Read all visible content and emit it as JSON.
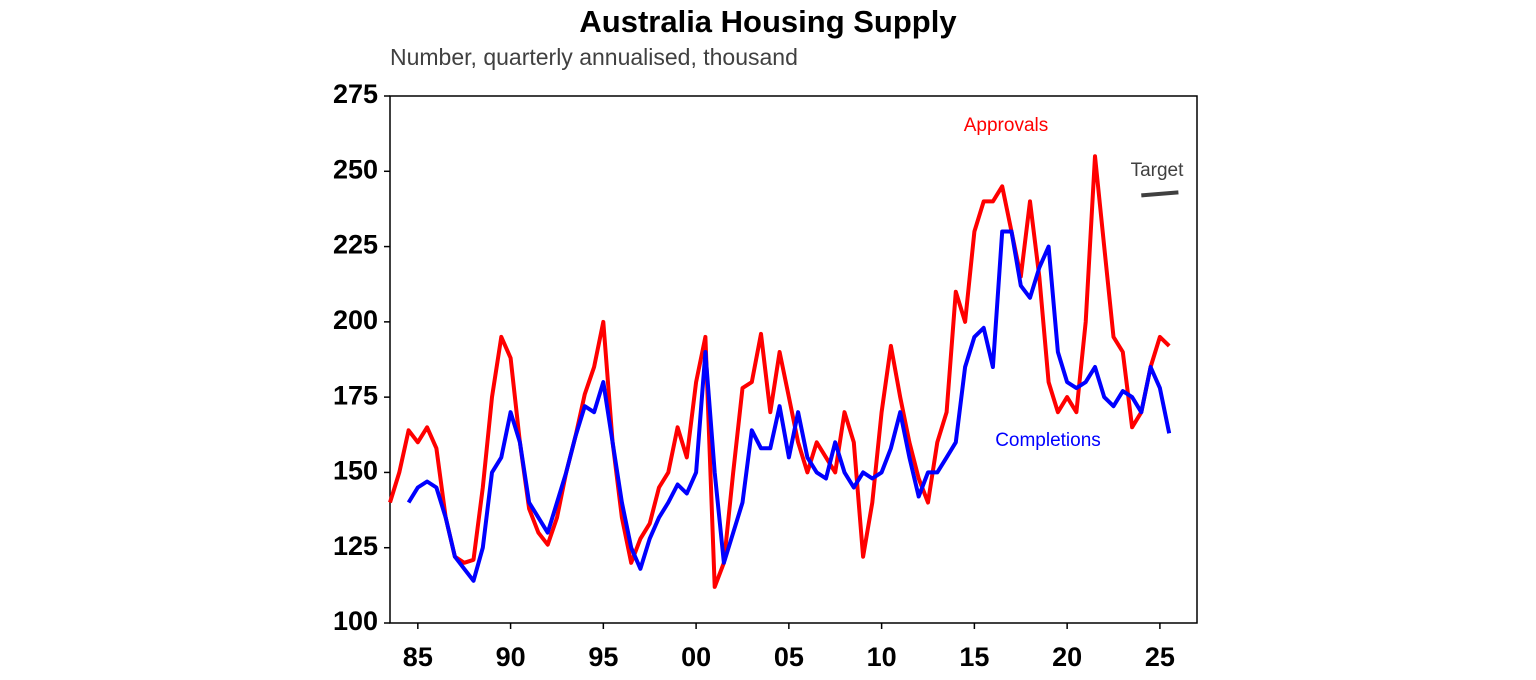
{
  "chart_data": {
    "type": "line",
    "title": "Australia Housing Supply",
    "subtitle": "Number, quarterly annualised, thousand",
    "x": [
      1983.5,
      1984,
      1984.5,
      1985,
      1985.5,
      1986,
      1986.5,
      1987,
      1987.5,
      1988,
      1988.5,
      1989,
      1989.5,
      1990,
      1990.5,
      1991,
      1991.5,
      1992,
      1992.5,
      1993,
      1993.5,
      1994,
      1994.5,
      1995,
      1995.5,
      1996,
      1996.5,
      1997,
      1997.5,
      1998,
      1998.5,
      1999,
      1999.5,
      2000,
      2000.5,
      2001,
      2001.5,
      2002,
      2002.5,
      2003,
      2003.5,
      2004,
      2004.5,
      2005,
      2005.5,
      2006,
      2006.5,
      2007,
      2007.5,
      2008,
      2008.5,
      2009,
      2009.5,
      2010,
      2010.5,
      2011,
      2011.5,
      2012,
      2012.5,
      2013,
      2013.5,
      2014,
      2014.5,
      2015,
      2015.5,
      2016,
      2016.5,
      2017,
      2017.5,
      2018,
      2018.5,
      2019,
      2019.5,
      2020,
      2020.5,
      2021,
      2021.5,
      2022,
      2022.5,
      2023,
      2023.5,
      2024,
      2024.5,
      2025,
      2025.5
    ],
    "series": [
      {
        "name": "Approvals",
        "color": "#ff0000",
        "values": [
          140,
          150,
          164,
          160,
          165,
          158,
          135,
          122,
          120,
          121,
          145,
          175,
          195,
          188,
          160,
          138,
          130,
          126,
          135,
          150,
          162,
          176,
          185,
          200,
          160,
          135,
          120,
          128,
          133,
          145,
          150,
          165,
          155,
          180,
          195,
          112,
          120,
          150,
          178,
          180,
          196,
          170,
          190,
          175,
          160,
          150,
          160,
          155,
          150,
          170,
          160,
          122,
          140,
          170,
          192,
          175,
          160,
          148,
          140,
          160,
          170,
          210,
          200,
          230,
          240,
          240,
          245,
          230,
          215,
          240,
          215,
          180,
          170,
          175,
          170,
          200,
          255,
          225,
          195,
          190,
          165,
          170,
          185,
          195,
          192
        ]
      },
      {
        "name": "Completions",
        "color": "#0000ff",
        "values": [
          null,
          null,
          140,
          145,
          147,
          145,
          135,
          122,
          118,
          114,
          125,
          150,
          155,
          170,
          160,
          140,
          135,
          130,
          140,
          150,
          162,
          172,
          170,
          180,
          160,
          140,
          125,
          118,
          128,
          135,
          140,
          146,
          143,
          150,
          190,
          150,
          120,
          130,
          140,
          164,
          158,
          158,
          172,
          155,
          170,
          155,
          150,
          148,
          160,
          150,
          145,
          150,
          148,
          150,
          158,
          170,
          155,
          142,
          150,
          150,
          155,
          160,
          185,
          195,
          198,
          185,
          230,
          230,
          212,
          208,
          218,
          225,
          190,
          180,
          178,
          180,
          185,
          175,
          172,
          177,
          175,
          170,
          185,
          178,
          163
        ]
      }
    ],
    "target": {
      "label": "Target",
      "color": "#404040",
      "x": [
        2024,
        2026
      ],
      "values": [
        242,
        243
      ]
    },
    "xlim": [
      1983.5,
      2027
    ],
    "xticks": [
      {
        "value": 1985,
        "label": "85"
      },
      {
        "value": 1990,
        "label": "90"
      },
      {
        "value": 1995,
        "label": "95"
      },
      {
        "value": 2000,
        "label": "00"
      },
      {
        "value": 2005,
        "label": "05"
      },
      {
        "value": 2010,
        "label": "10"
      },
      {
        "value": 2015,
        "label": "15"
      },
      {
        "value": 2020,
        "label": "20"
      },
      {
        "value": 2025,
        "label": "25"
      }
    ],
    "ylim": [
      100,
      275
    ],
    "yticks": [
      100,
      125,
      150,
      175,
      200,
      225,
      250,
      275
    ]
  }
}
